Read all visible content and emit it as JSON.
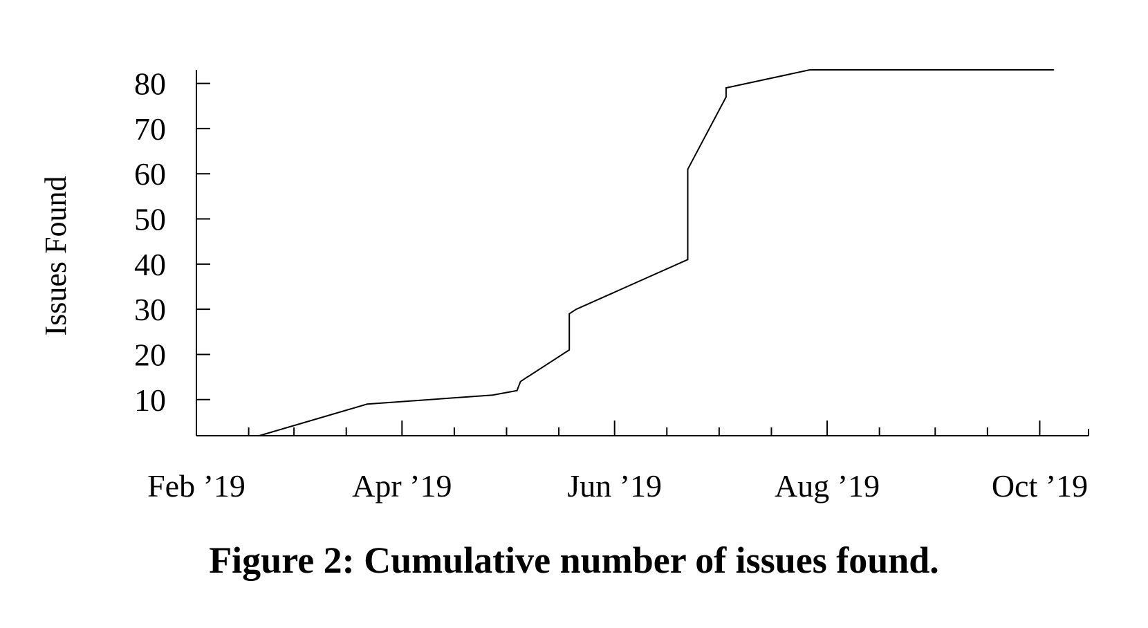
{
  "caption": "Figure 2: Cumulative number of issues found.",
  "chart_data": {
    "type": "line",
    "title": "",
    "xlabel": "",
    "ylabel": "Issues Found",
    "x_tick_labels": [
      "Feb ’19",
      "Apr ’19",
      "Jun ’19",
      "Aug ’19",
      "Oct ’19"
    ],
    "y_ticks": [
      10,
      20,
      30,
      40,
      50,
      60,
      70,
      80
    ],
    "xlim": [
      "2019-02-01",
      "2019-10-15"
    ],
    "ylim": [
      2,
      83
    ],
    "grid": false,
    "legend": "none",
    "line_color": "#000000",
    "series": [
      {
        "x": [
          "2019-02-19",
          "2019-03-22",
          "2019-04-27",
          "2019-05-04",
          "2019-05-05",
          "2019-05-19",
          "2019-05-19",
          "2019-05-21",
          "2019-06-22",
          "2019-06-22",
          "2019-07-03",
          "2019-07-03",
          "2019-07-27",
          "2019-10-05"
        ],
        "y": [
          2,
          9,
          11,
          12,
          14,
          21,
          29,
          30,
          41,
          61,
          77,
          79,
          83,
          83
        ]
      }
    ]
  }
}
